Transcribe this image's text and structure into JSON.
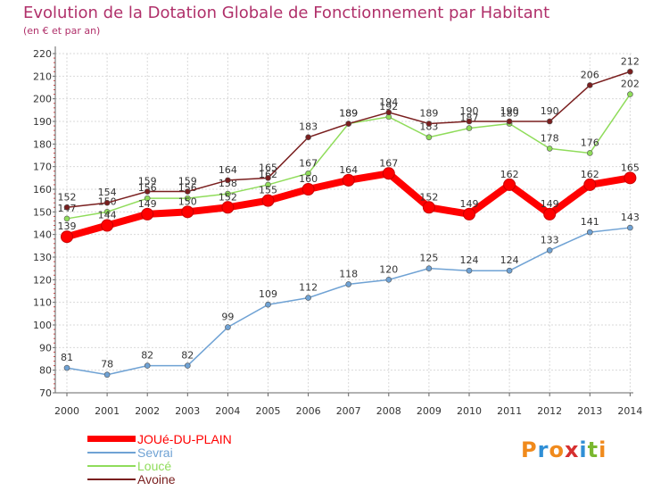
{
  "title": "Evolution de la Dotation Globale de Fonctionnement par Habitant",
  "subtitle": "(en € et par an)",
  "logo": {
    "text": "Proxiti",
    "colors": [
      "#f08a1c",
      "#2f8fd6",
      "#f08a1c",
      "#d62f2f",
      "#2f8fd6",
      "#7ab82f",
      "#f08a1c"
    ]
  },
  "colors": {
    "title": "#b0306a",
    "axis": "#666666",
    "grid": "#d9d9d9",
    "tick_minor": "#d23a3a"
  },
  "chart_data": {
    "type": "line",
    "title": "Evolution de la Dotation Globale de Fonctionnement par Habitant",
    "subtitle": "(en € et par an)",
    "xlabel": "",
    "ylabel": "",
    "x": [
      "2000",
      "2001",
      "2002",
      "2003",
      "2004",
      "2005",
      "2006",
      "2007",
      "2008",
      "2009",
      "2010",
      "2011",
      "2012",
      "2013",
      "2014"
    ],
    "ylim": [
      70,
      220
    ],
    "yticks": [
      70,
      80,
      90,
      100,
      110,
      120,
      130,
      140,
      150,
      160,
      170,
      180,
      190,
      200,
      210,
      220
    ],
    "grid": true,
    "legend_position": "bottom-left",
    "series": [
      {
        "name": "JOUé-DU-PLAIN",
        "color": "#ff0000",
        "values": [
          139,
          144,
          149,
          150,
          152,
          155,
          160,
          164,
          167,
          152,
          149,
          162,
          149,
          162,
          165
        ],
        "labels": [
          "139",
          "144",
          "149",
          "150",
          "152",
          "155",
          "160",
          "164",
          "167",
          "152",
          "149",
          "162",
          "149",
          "162",
          "165"
        ],
        "bold": true
      },
      {
        "name": "Sevrai",
        "color": "#6fa2d4",
        "values": [
          81,
          78,
          82,
          82,
          99,
          109,
          112,
          118,
          120,
          125,
          124,
          124,
          133,
          141,
          143
        ],
        "labels": [
          "81",
          "78",
          "82",
          "82",
          "99",
          "109",
          "112",
          "118",
          "120",
          "125",
          "124",
          "124",
          "133",
          "141",
          "143"
        ],
        "bold": false
      },
      {
        "name": "Loucé",
        "color": "#8fdc5a",
        "values": [
          147,
          150,
          156,
          156,
          158,
          162,
          167,
          189,
          192,
          183,
          187,
          189,
          178,
          176,
          202
        ],
        "labels": [
          "147",
          "150",
          "156",
          "156",
          "158",
          "162",
          "167",
          "189",
          "192",
          "183",
          "187",
          "189",
          "178",
          "176",
          "202"
        ],
        "bold": false
      },
      {
        "name": "Avoine",
        "color": "#7a1f1f",
        "values": [
          152,
          154,
          159,
          159,
          164,
          165,
          183,
          189,
          194,
          189,
          190,
          190,
          190,
          206,
          212
        ],
        "labels": [
          "152",
          "154",
          "159",
          "159",
          "164",
          "165",
          "183",
          "189",
          "194",
          "189",
          "190",
          "190",
          "190",
          "206",
          "212"
        ],
        "bold": false
      }
    ]
  }
}
